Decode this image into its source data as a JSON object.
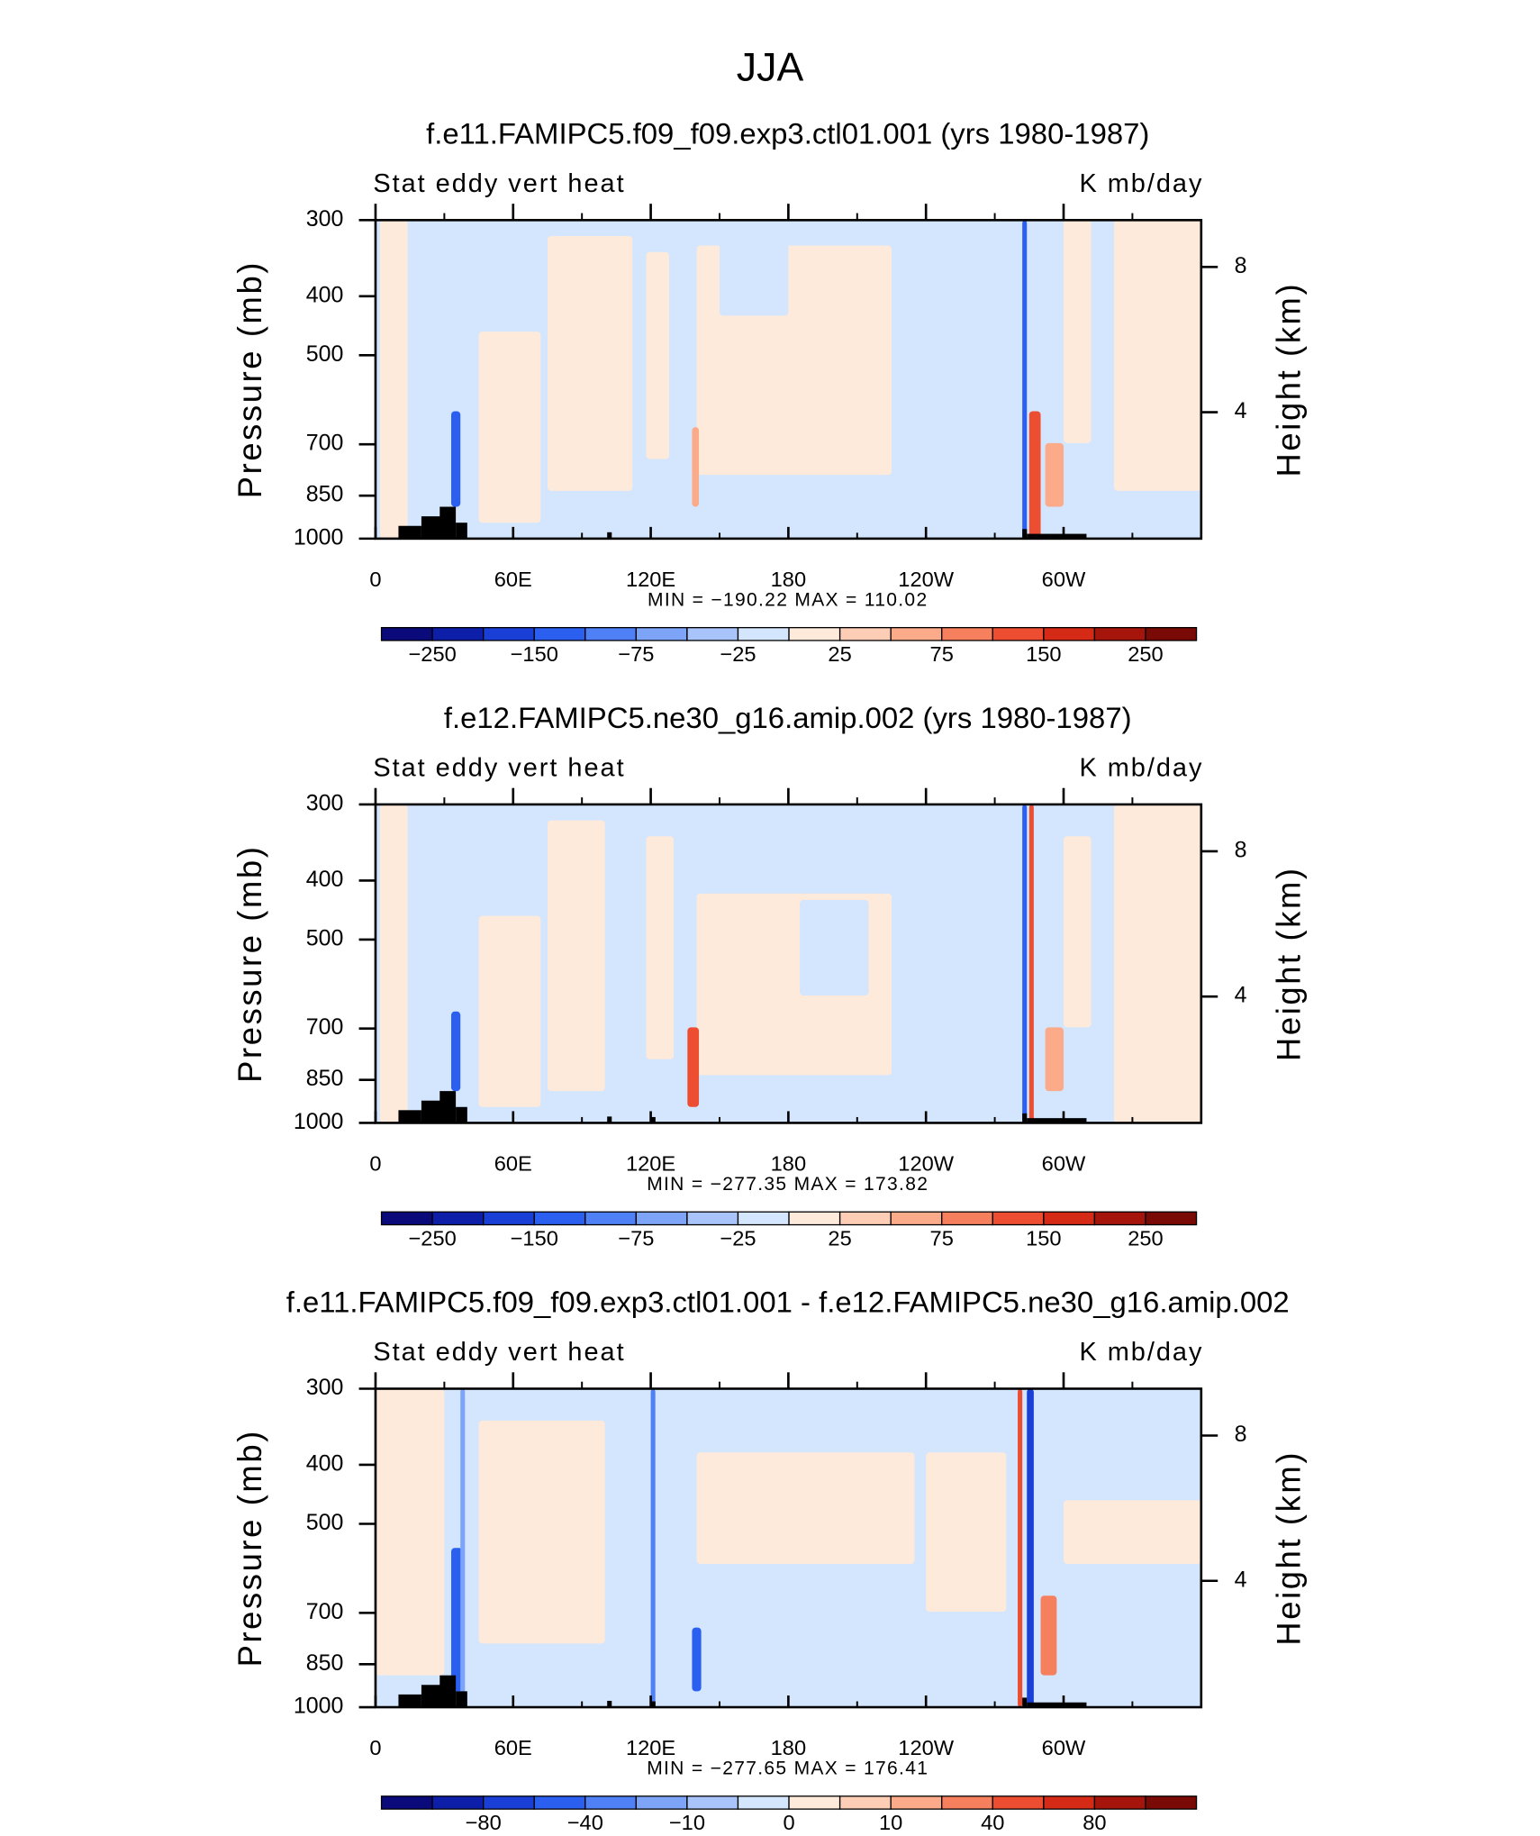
{
  "title": "JJA",
  "chart_data": [
    {
      "type": "contour",
      "title": "f.e11.FAMIPC5.f09_f09.exp3.ctl01.001 (yrs 1980-1987)",
      "left_label": "Stat eddy vert heat",
      "right_label": "K mb/day",
      "ylabel": "Pressure (mb)",
      "y2label": "Height (km)",
      "xlim": [
        0,
        360
      ],
      "xticks": [
        0,
        {
          "value": 60,
          "label": "60E"
        },
        {
          "value": 120,
          "label": "120E"
        },
        180,
        {
          "value": 240,
          "label": "120W"
        },
        {
          "value": 300,
          "label": "60W"
        }
      ],
      "ylim": [
        1000,
        300
      ],
      "ylog": true,
      "yticks": [
        300,
        400,
        500,
        700,
        850,
        1000
      ],
      "y2lim": [
        0.52,
        9.29
      ],
      "y2ticks": [
        4,
        8
      ],
      "stats": "MIN = −190.22   MAX = 110.02",
      "colorbar": {
        "colors": [
          "#0a0a7a",
          "#0d1ea8",
          "#1a3fd6",
          "#2a5ff0",
          "#4f80f5",
          "#7ea4f7",
          "#a8c4fa",
          "#d3e6fd",
          "#feeadb",
          "#fdcdb5",
          "#fbaa8a",
          "#f6805e",
          "#ed4d30",
          "#d42a16",
          "#a6150c",
          "#7a0a05"
        ],
        "ticks": [
          {
            "value": -250,
            "label": "−250"
          },
          {
            "value": -150,
            "label": "−150"
          },
          {
            "value": -75,
            "label": "−75"
          },
          {
            "value": -25,
            "label": "−25"
          },
          25,
          75,
          150,
          250
        ]
      }
    },
    {
      "type": "contour",
      "title": "f.e12.FAMIPC5.ne30_g16.amip.002 (yrs 1980-1987)",
      "left_label": "Stat eddy vert heat",
      "right_label": "K mb/day",
      "ylabel": "Pressure (mb)",
      "y2label": "Height (km)",
      "xlim": [
        0,
        360
      ],
      "xticks": [
        0,
        {
          "value": 60,
          "label": "60E"
        },
        {
          "value": 120,
          "label": "120E"
        },
        180,
        {
          "value": 240,
          "label": "120W"
        },
        {
          "value": 300,
          "label": "60W"
        }
      ],
      "ylim": [
        1000,
        300
      ],
      "ylog": true,
      "yticks": [
        300,
        400,
        500,
        700,
        850,
        1000
      ],
      "y2lim": [
        0.52,
        9.29
      ],
      "y2ticks": [
        4,
        8
      ],
      "stats": "MIN = −277.35   MAX = 173.82",
      "colorbar": {
        "colors": [
          "#0a0a7a",
          "#0d1ea8",
          "#1a3fd6",
          "#2a5ff0",
          "#4f80f5",
          "#7ea4f7",
          "#a8c4fa",
          "#d3e6fd",
          "#feeadb",
          "#fdcdb5",
          "#fbaa8a",
          "#f6805e",
          "#ed4d30",
          "#d42a16",
          "#a6150c",
          "#7a0a05"
        ],
        "ticks": [
          {
            "value": -250,
            "label": "−250"
          },
          {
            "value": -150,
            "label": "−150"
          },
          {
            "value": -75,
            "label": "−75"
          },
          {
            "value": -25,
            "label": "−25"
          },
          25,
          75,
          150,
          250
        ]
      }
    },
    {
      "type": "contour",
      "title": "f.e11.FAMIPC5.f09_f09.exp3.ctl01.001 - f.e12.FAMIPC5.ne30_g16.amip.002",
      "left_label": "Stat eddy vert heat",
      "right_label": "K mb/day",
      "ylabel": "Pressure (mb)",
      "y2label": "Height (km)",
      "xlim": [
        0,
        360
      ],
      "xticks": [
        0,
        {
          "value": 60,
          "label": "60E"
        },
        {
          "value": 120,
          "label": "120E"
        },
        180,
        {
          "value": 240,
          "label": "120W"
        },
        {
          "value": 300,
          "label": "60W"
        }
      ],
      "ylim": [
        1000,
        300
      ],
      "ylog": true,
      "yticks": [
        300,
        400,
        500,
        700,
        850,
        1000
      ],
      "y2lim": [
        0.52,
        9.29
      ],
      "y2ticks": [
        4,
        8
      ],
      "stats": "MIN = −277.65   MAX = 176.41",
      "colorbar": {
        "colors": [
          "#0a0a7a",
          "#0d1ea8",
          "#1a3fd6",
          "#2a5ff0",
          "#4f80f5",
          "#7ea4f7",
          "#a8c4fa",
          "#d3e6fd",
          "#feeadb",
          "#fdcdb5",
          "#fbaa8a",
          "#f6805e",
          "#ed4d30",
          "#d42a16",
          "#a6150c",
          "#7a0a05"
        ],
        "ticks": [
          {
            "value": -80,
            "label": "−80"
          },
          {
            "value": -40,
            "label": "−40"
          },
          {
            "value": -10,
            "label": "−10"
          },
          0,
          10,
          40,
          80
        ]
      }
    }
  ]
}
